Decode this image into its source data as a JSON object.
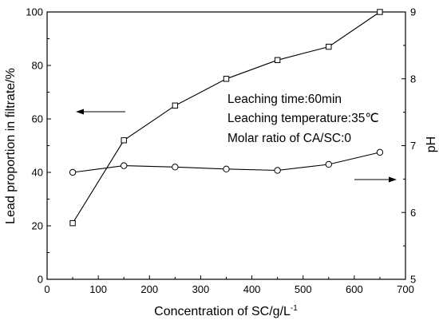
{
  "chart_data": {
    "type": "line",
    "xlabel": "Concentration of SC/g/L",
    "xlabel_sup": "-1",
    "ylabel_left": "Lead proportion in filtrate/%",
    "ylabel_right": "pH",
    "xlim": [
      0,
      700
    ],
    "ylim_left": [
      0,
      100
    ],
    "ylim_right": [
      5,
      9
    ],
    "x_ticks": [
      "0",
      "100",
      "200",
      "300",
      "400",
      "500",
      "600",
      "700"
    ],
    "y_left_ticks": [
      "0",
      "20",
      "40",
      "60",
      "80",
      "100"
    ],
    "y_right_ticks": [
      "5",
      "6",
      "7",
      "8",
      "9"
    ],
    "x": [
      50,
      150,
      250,
      350,
      450,
      550,
      650
    ],
    "series": [
      {
        "axis": "left",
        "marker": "square",
        "values": [
          21,
          52,
          65,
          75,
          82,
          87,
          100
        ]
      },
      {
        "axis": "right",
        "marker": "circle",
        "values": [
          6.6,
          6.7,
          6.68,
          6.65,
          6.63,
          6.72,
          6.9
        ]
      }
    ],
    "annotations": [
      "Leaching time:60min",
      "Leaching temperature:35℃",
      "Molar ratio of CA/SC:0"
    ],
    "arrows": [
      {
        "series": "square",
        "direction": "left"
      },
      {
        "series": "circle",
        "direction": "right"
      }
    ],
    "grid": false
  }
}
